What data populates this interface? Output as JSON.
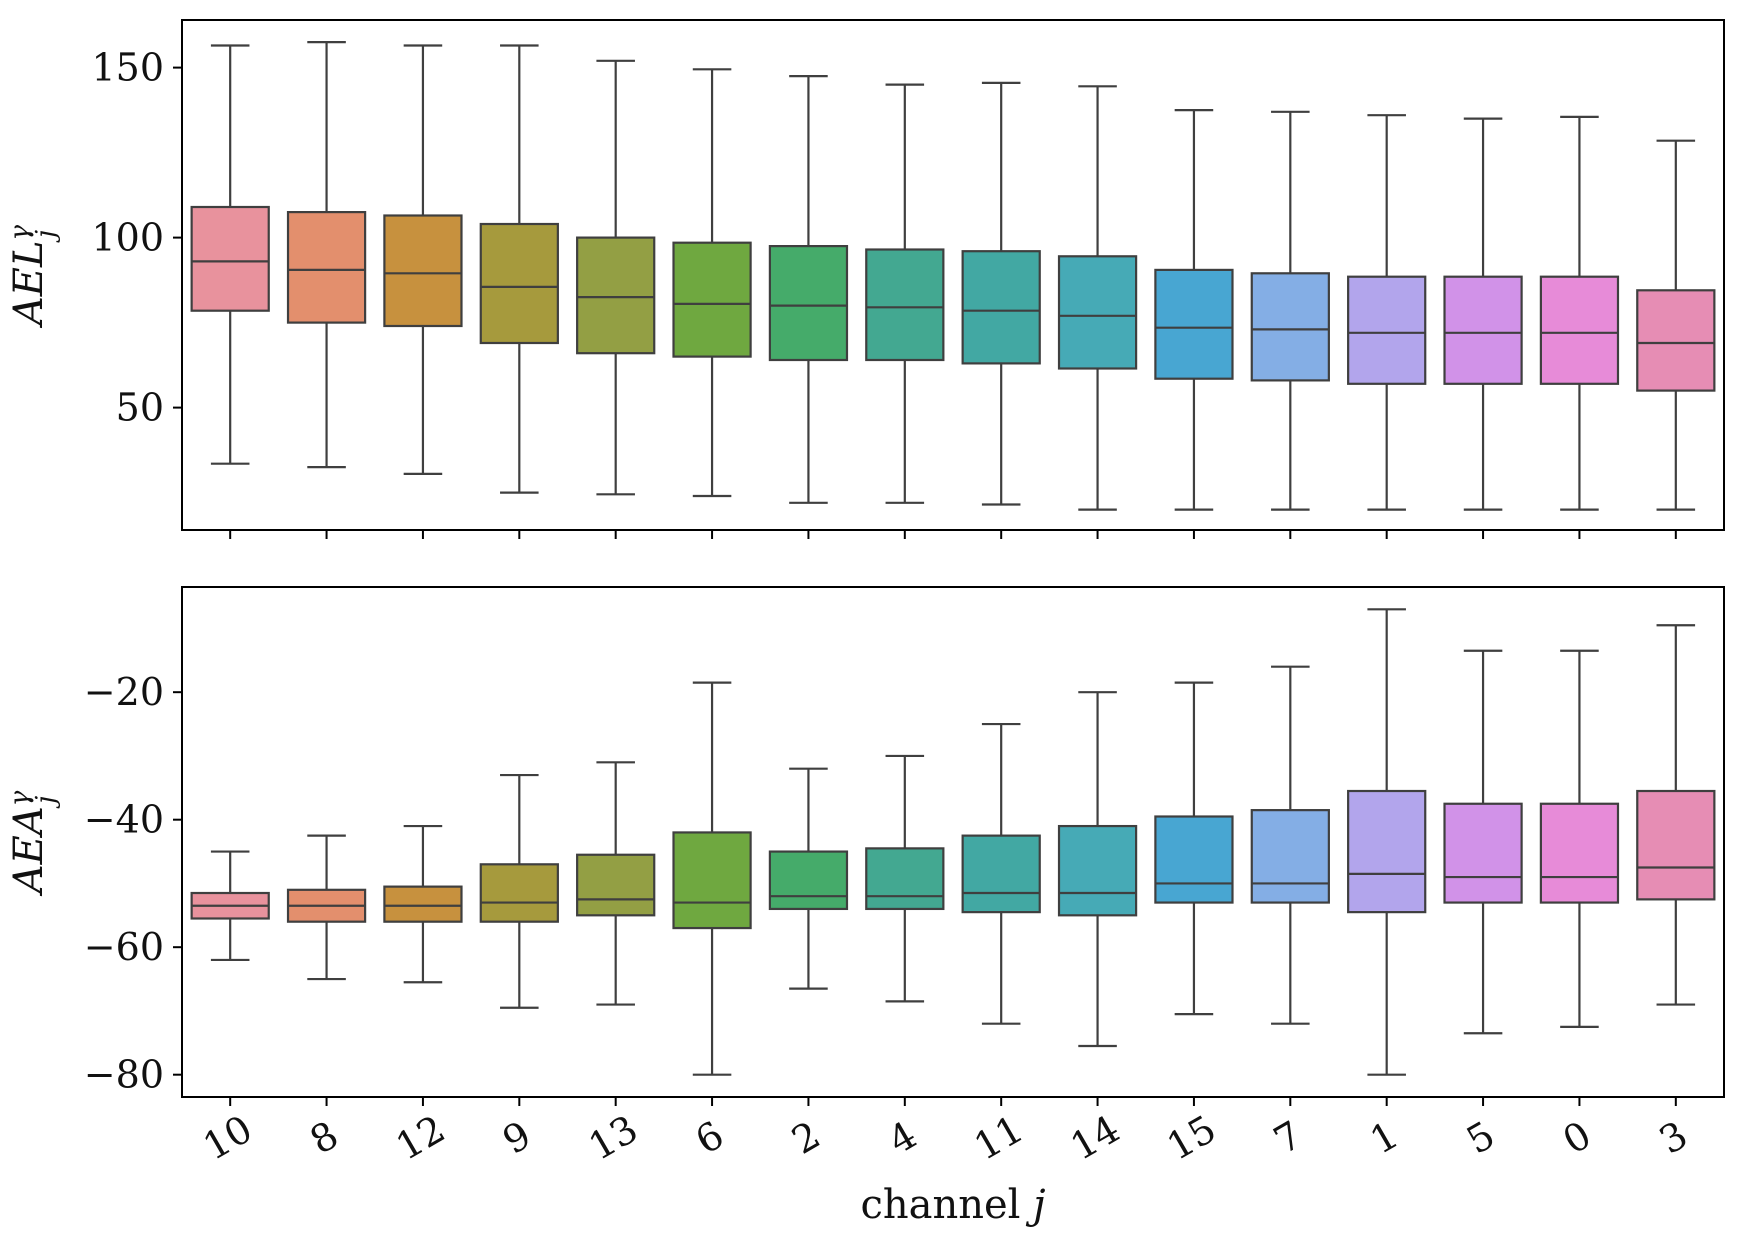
{
  "chart_data": {
    "type": "box",
    "xlabel": "channel j",
    "categories": [
      "10",
      "8",
      "12",
      "9",
      "13",
      "6",
      "2",
      "4",
      "11",
      "14",
      "15",
      "7",
      "1",
      "5",
      "0",
      "3"
    ],
    "colors": [
      "#e8929d",
      "#e38f6d",
      "#c7913e",
      "#a69a3d",
      "#939f44",
      "#6fa840",
      "#45ab6a",
      "#43a891",
      "#42a8a3",
      "#46aab6",
      "#48a6d2",
      "#84aee5",
      "#b2a5ec",
      "#d192e8",
      "#e78bd8",
      "#e68db4"
    ],
    "panels": [
      {
        "ylabel": "AEL",
        "ylabel_sup": "γ",
        "ylabel_sub": "j",
        "ylim": [
          14,
          164
        ],
        "yticks": [
          50,
          100,
          150
        ],
        "ytick_labels": [
          "50",
          "100",
          "150"
        ],
        "boxes": [
          {
            "whislo": 33.5,
            "q1": 78.5,
            "med": 93,
            "q3": 109,
            "whishi": 156.5
          },
          {
            "whislo": 32.5,
            "q1": 75,
            "med": 90.5,
            "q3": 107.5,
            "whishi": 157.5
          },
          {
            "whislo": 30.5,
            "q1": 74,
            "med": 89.5,
            "q3": 106.5,
            "whishi": 156.5
          },
          {
            "whislo": 25,
            "q1": 69,
            "med": 85.5,
            "q3": 104,
            "whishi": 156.5
          },
          {
            "whislo": 24.5,
            "q1": 66,
            "med": 82.5,
            "q3": 100,
            "whishi": 152
          },
          {
            "whislo": 24,
            "q1": 65,
            "med": 80.5,
            "q3": 98.5,
            "whishi": 149.5
          },
          {
            "whislo": 22,
            "q1": 64,
            "med": 80,
            "q3": 97.5,
            "whishi": 147.5
          },
          {
            "whislo": 22,
            "q1": 64,
            "med": 79.5,
            "q3": 96.5,
            "whishi": 145
          },
          {
            "whislo": 21.5,
            "q1": 63,
            "med": 78.5,
            "q3": 96,
            "whishi": 145.5
          },
          {
            "whislo": 20,
            "q1": 61.5,
            "med": 77,
            "q3": 94.5,
            "whishi": 144.5
          },
          {
            "whislo": 20,
            "q1": 58.5,
            "med": 73.5,
            "q3": 90.5,
            "whishi": 137.5
          },
          {
            "whislo": 20,
            "q1": 58,
            "med": 73,
            "q3": 89.5,
            "whishi": 137
          },
          {
            "whislo": 20,
            "q1": 57,
            "med": 72,
            "q3": 88.5,
            "whishi": 136
          },
          {
            "whislo": 20,
            "q1": 57,
            "med": 72,
            "q3": 88.5,
            "whishi": 135
          },
          {
            "whislo": 20,
            "q1": 57,
            "med": 72,
            "q3": 88.5,
            "whishi": 135.5
          },
          {
            "whislo": 20,
            "q1": 55,
            "med": 69,
            "q3": 84.5,
            "whishi": 128.5
          }
        ]
      },
      {
        "ylabel": "AEA",
        "ylabel_sup": "γ",
        "ylabel_sub": "j",
        "ylim": [
          -83.5,
          -3.5
        ],
        "yticks": [
          -80,
          -60,
          -40,
          -20
        ],
        "ytick_labels": [
          "−80",
          "−60",
          "−40",
          "−20"
        ],
        "boxes": [
          {
            "whislo": -62,
            "q1": -55.5,
            "med": -53.5,
            "q3": -51.5,
            "whishi": -45
          },
          {
            "whislo": -65,
            "q1": -56,
            "med": -53.5,
            "q3": -51,
            "whishi": -42.5
          },
          {
            "whislo": -65.5,
            "q1": -56,
            "med": -53.5,
            "q3": -50.5,
            "whishi": -41
          },
          {
            "whislo": -69.5,
            "q1": -56,
            "med": -53,
            "q3": -47,
            "whishi": -33
          },
          {
            "whislo": -69,
            "q1": -55,
            "med": -52.5,
            "q3": -45.5,
            "whishi": -31
          },
          {
            "whislo": -80,
            "q1": -57,
            "med": -53,
            "q3": -42,
            "whishi": -18.5
          },
          {
            "whislo": -66.5,
            "q1": -54,
            "med": -52,
            "q3": -45,
            "whishi": -32
          },
          {
            "whislo": -68.5,
            "q1": -54,
            "med": -52,
            "q3": -44.5,
            "whishi": -30
          },
          {
            "whislo": -72,
            "q1": -54.5,
            "med": -51.5,
            "q3": -42.5,
            "whishi": -25
          },
          {
            "whislo": -75.5,
            "q1": -55,
            "med": -51.5,
            "q3": -41,
            "whishi": -20
          },
          {
            "whislo": -70.5,
            "q1": -53,
            "med": -50,
            "q3": -39.5,
            "whishi": -18.5
          },
          {
            "whislo": -72,
            "q1": -53,
            "med": -50,
            "q3": -38.5,
            "whishi": -16
          },
          {
            "whislo": -80,
            "q1": -54.5,
            "med": -48.5,
            "q3": -35.5,
            "whishi": -7
          },
          {
            "whislo": -73.5,
            "q1": -53,
            "med": -49,
            "q3": -37.5,
            "whishi": -13.5
          },
          {
            "whislo": -72.5,
            "q1": -53,
            "med": -49,
            "q3": -37.5,
            "whishi": -13.5
          },
          {
            "whislo": -69,
            "q1": -52.5,
            "med": -47.5,
            "q3": -35.5,
            "whishi": -9.5
          }
        ]
      }
    ]
  }
}
